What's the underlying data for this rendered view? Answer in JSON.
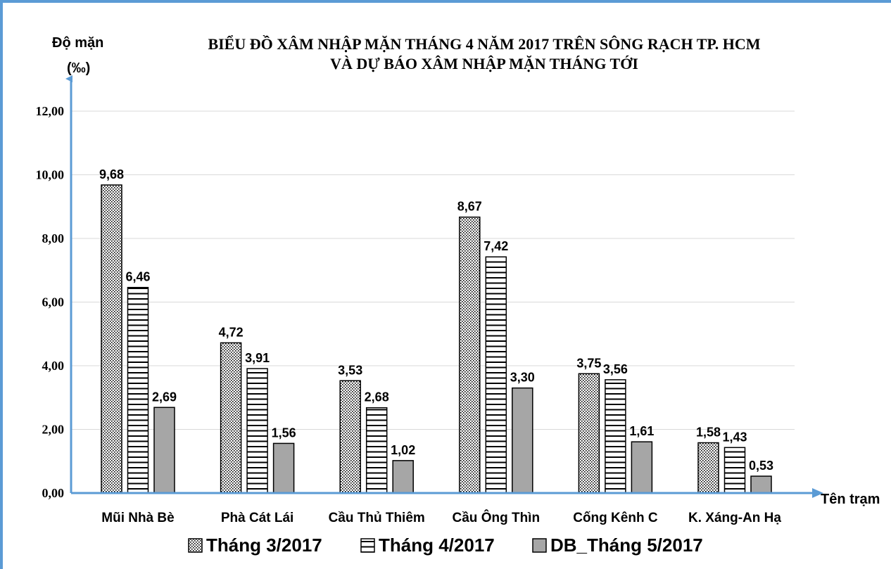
{
  "chart_data": {
    "type": "bar",
    "title_line1": "BIỂU ĐỒ XÂM NHẬP MẶN THÁNG 4 NĂM 2017 TRÊN SÔNG RẠCH TP. HCM",
    "title_line2": "VÀ DỰ BÁO XÂM NHẬP MẶN THÁNG TỚI",
    "ylabel_line1": "Độ mặn",
    "ylabel_line2": "(‰)",
    "xlabel": "Tên trạm",
    "ylim": [
      0,
      12
    ],
    "yticks": [
      "0,00",
      "2,00",
      "4,00",
      "6,00",
      "8,00",
      "10,00",
      "12,00"
    ],
    "grid": true,
    "legend_position": "bottom",
    "categories": [
      "Mũi Nhà Bè",
      "Phà Cát Lái",
      "Cầu Thủ Thiêm",
      "Cầu Ông Thìn",
      "Cống Kênh C",
      "K. Xáng-An Hạ"
    ],
    "series": [
      {
        "name": "Tháng 3/2017",
        "pattern": "dots",
        "values": [
          9.68,
          4.72,
          3.53,
          8.67,
          3.75,
          1.58
        ],
        "labels": [
          "9,68",
          "4,72",
          "3,53",
          "8,67",
          "3,75",
          "1,58"
        ]
      },
      {
        "name": "Tháng 4/2017",
        "pattern": "hlines",
        "values": [
          6.46,
          3.91,
          2.68,
          7.42,
          3.56,
          1.43
        ],
        "labels": [
          "6,46",
          "3,91",
          "2,68",
          "7,42",
          "3,56",
          "1,43"
        ]
      },
      {
        "name": "DB_Tháng 5/2017",
        "pattern": "solid",
        "values": [
          2.69,
          1.56,
          1.02,
          3.3,
          1.61,
          0.53
        ],
        "labels": [
          "2,69",
          "1,56",
          "1,02",
          "3,30",
          "1,61",
          "0,53"
        ]
      }
    ],
    "colors": {
      "axis": "#5b9bd5",
      "solid_fill": "#a6a6a6",
      "grid": "#d9d9d9",
      "border": "#5b9bd5"
    }
  }
}
